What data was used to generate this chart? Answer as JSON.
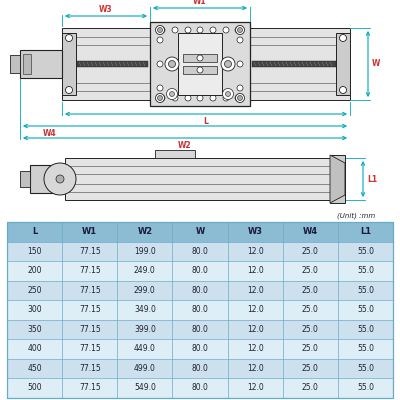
{
  "table_headers": [
    "L",
    "W1",
    "W2",
    "W",
    "W3",
    "W4",
    "L1"
  ],
  "table_data": [
    [
      "150",
      "77.15",
      "199.0",
      "80.0",
      "12.0",
      "25.0",
      "55.0"
    ],
    [
      "200",
      "77.15",
      "249.0",
      "80.0",
      "12.0",
      "25.0",
      "55.0"
    ],
    [
      "250",
      "77.15",
      "299.0",
      "80.0",
      "12.0",
      "25.0",
      "55.0"
    ],
    [
      "300",
      "77.15",
      "349.0",
      "80.0",
      "12.0",
      "25.0",
      "55.0"
    ],
    [
      "350",
      "77.15",
      "399.0",
      "80.0",
      "12.0",
      "25.0",
      "55.0"
    ],
    [
      "400",
      "77.15",
      "449.0",
      "80.0",
      "12.0",
      "25.0",
      "55.0"
    ],
    [
      "450",
      "77.15",
      "499.0",
      "80.0",
      "12.0",
      "25.0",
      "55.0"
    ],
    [
      "500",
      "77.15",
      "549.0",
      "80.0",
      "12.0",
      "25.0",
      "55.0"
    ]
  ],
  "table_header_bg": "#8bbcd4",
  "table_row_bg_odd": "#cce0ee",
  "table_row_bg_even": "#ddeef6",
  "table_border_color": "#6aaac8",
  "unit_text": "(Unit) :mm",
  "dim_color_red": "#cc3333",
  "dim_color_cyan": "#00aabb",
  "background_color": "#ffffff",
  "black": "#222222",
  "darkgray": "#555555",
  "midgray": "#888888",
  "lightgray": "#d8d8d8",
  "rail_color": "#e4e4e4",
  "carriage_color": "#dcdcdc"
}
